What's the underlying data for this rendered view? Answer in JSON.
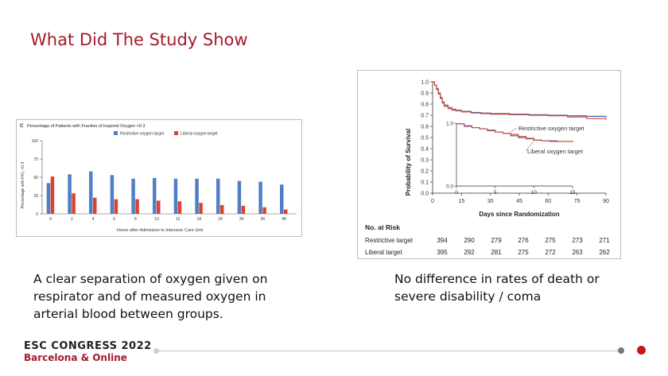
{
  "slide": {
    "title": "What Did The Study Show",
    "caption_left": "A clear separation of oxygen given on respirator and of measured oxygen in arterial blood between groups.",
    "caption_right": "No difference in rates of death or severe disability / coma",
    "brand_line1": "ESC CONGRESS 2022",
    "brand_line2": "Barcelona & Online",
    "accent_color": "#a51b2b"
  },
  "chart_data": [
    {
      "type": "bar",
      "panel_label": "C",
      "title": "Percentage of Patients with Fraction of Inspired Oxygen <0.3",
      "xlabel": "Hours after Admission to Intensive Care Unit",
      "ylabel": "Percentage with FiO₂ <0.3",
      "categories": [
        "0",
        "2",
        "4",
        "6",
        "8",
        "10",
        "12",
        "18",
        "24",
        "30",
        "36",
        "48"
      ],
      "ylim": [
        0,
        100
      ],
      "yticks": [
        "0",
        "25",
        "50",
        "75",
        "100"
      ],
      "series": [
        {
          "name": "Restrictive oxygen target",
          "color": "#4f7fc6",
          "values": [
            42,
            54,
            58,
            53,
            48,
            49,
            48,
            48,
            48,
            45,
            44,
            40
          ]
        },
        {
          "name": "Liberal oxygen target",
          "color": "#d9442f",
          "values": [
            51,
            28,
            22,
            20,
            20,
            18,
            17,
            15,
            12,
            11,
            9,
            6
          ]
        }
      ],
      "legend": "top",
      "grid": false
    },
    {
      "type": "line",
      "ylabel": "Probability of Survival",
      "xlabel": "Days since Randomization",
      "x_ticks": [
        0,
        15,
        30,
        45,
        60,
        75,
        90
      ],
      "y_ticks": [
        "0.0",
        "0.1",
        "0.2",
        "0.3",
        "0.4",
        "0.5",
        "0.6",
        "0.7",
        "0.8",
        "0.9",
        "1.0"
      ],
      "xlim": [
        0,
        90
      ],
      "ylim": [
        0,
        1.0
      ],
      "series": [
        {
          "name": "Restrictive oxygen target",
          "color": "#3f62b8",
          "x": [
            0,
            1,
            2,
            3,
            4,
            5,
            6,
            8,
            10,
            12,
            15,
            20,
            25,
            30,
            40,
            50,
            60,
            70,
            80,
            90
          ],
          "y": [
            1.0,
            0.97,
            0.94,
            0.9,
            0.86,
            0.82,
            0.79,
            0.77,
            0.755,
            0.745,
            0.735,
            0.725,
            0.72,
            0.715,
            0.71,
            0.705,
            0.7,
            0.695,
            0.69,
            0.68
          ]
        },
        {
          "name": "Liberal oxygen target",
          "color": "#cf4a32",
          "x": [
            0,
            1,
            2,
            3,
            4,
            5,
            6,
            8,
            10,
            12,
            15,
            20,
            25,
            30,
            40,
            50,
            60,
            70,
            80,
            90
          ],
          "y": [
            1.0,
            0.97,
            0.93,
            0.89,
            0.85,
            0.81,
            0.78,
            0.76,
            0.745,
            0.74,
            0.73,
            0.72,
            0.715,
            0.71,
            0.705,
            0.7,
            0.695,
            0.685,
            0.67,
            0.66
          ]
        }
      ],
      "inset": {
        "x_ticks": [
          0,
          5,
          10,
          15
        ],
        "y_ticks": [
          "0.0",
          "1.0"
        ],
        "restrictive": {
          "x": [
            0,
            1,
            2,
            3,
            4,
            5,
            6,
            7,
            8,
            9,
            10,
            11,
            12,
            13,
            14,
            15
          ],
          "y": [
            0.99,
            0.95,
            0.93,
            0.91,
            0.88,
            0.86,
            0.84,
            0.8,
            0.77,
            0.75,
            0.73,
            0.72,
            0.72,
            0.71,
            0.71,
            0.7
          ]
        },
        "liberal": {
          "x": [
            0,
            1,
            2,
            3,
            4,
            5,
            6,
            7,
            8,
            9,
            10,
            11,
            12,
            13,
            14,
            15
          ],
          "y": [
            0.99,
            0.96,
            0.93,
            0.91,
            0.89,
            0.86,
            0.84,
            0.82,
            0.79,
            0.76,
            0.73,
            0.72,
            0.71,
            0.71,
            0.71,
            0.7
          ]
        }
      },
      "annotations": [
        "Restrictive oxygen target",
        "Liberal oxygen target"
      ],
      "risk_table": {
        "header": "No. at Risk",
        "rows": [
          {
            "label": "Restrictive target",
            "values": [
              "394",
              "290",
              "279",
              "276",
              "275",
              "273",
              "271"
            ]
          },
          {
            "label": "Liberal target",
            "values": [
              "395",
              "292",
              "281",
              "275",
              "272",
              "263",
              "262"
            ]
          }
        ]
      }
    }
  ]
}
